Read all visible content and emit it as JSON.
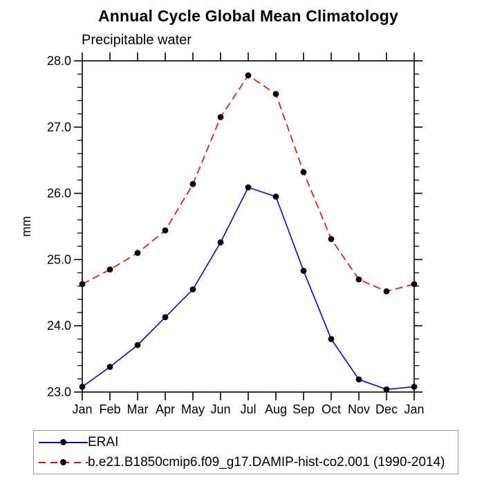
{
  "title": "Annual Cycle Global Mean Climatology",
  "subtitle": "Precipitable water",
  "chart_data": {
    "type": "line",
    "title": "Annual Cycle Global Mean Climatology",
    "subtitle_left": "Precipitable water",
    "xlabel": "",
    "ylabel": "mm",
    "ylim": [
      23.0,
      28.0
    ],
    "y_major_tick_step": 1.0,
    "y_minor_tick_step": 0.2,
    "y_tick_labels": [
      "23.0",
      "24.0",
      "25.0",
      "26.0",
      "27.0",
      "28.0"
    ],
    "categories": [
      "Jan",
      "Feb",
      "Mar",
      "Apr",
      "May",
      "Jun",
      "Jul",
      "Aug",
      "Sep",
      "Oct",
      "Nov",
      "Dec",
      "Jan"
    ],
    "grid": false,
    "legend_position": "bottom-left",
    "frame_color": "#000000",
    "series": [
      {
        "name": "ERAI",
        "color": "#0000ff",
        "line_style": "solid",
        "marker": "filled-circle",
        "marker_color": "#000000",
        "values": [
          23.08,
          23.38,
          23.71,
          24.13,
          24.55,
          25.26,
          26.09,
          25.95,
          24.83,
          23.8,
          23.19,
          23.04,
          23.08
        ]
      },
      {
        "name": "b.e21.B1850cmip6.f09_g17.DAMIP-hist-co2.001 (1990-2014)",
        "color": "#ff0000",
        "line_style": "dashed",
        "marker": "filled-circle",
        "marker_color": "#000000",
        "values": [
          24.63,
          24.85,
          25.1,
          25.44,
          26.14,
          27.15,
          27.78,
          27.5,
          26.32,
          25.31,
          24.7,
          24.52,
          24.63
        ]
      }
    ]
  }
}
